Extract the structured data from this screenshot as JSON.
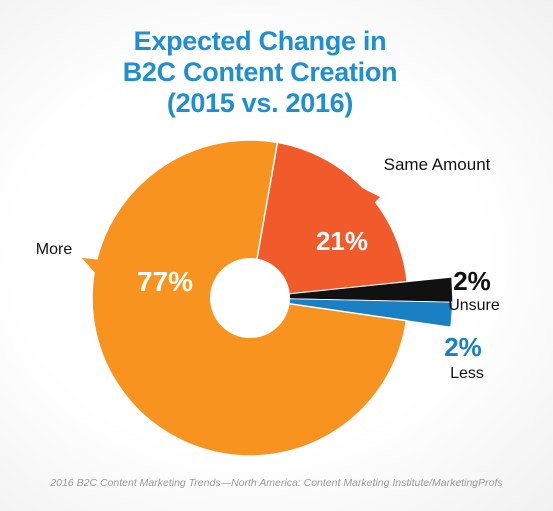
{
  "chart_data": {
    "type": "pie",
    "title_lines": [
      "Expected Change in",
      "B2C Content Creation",
      "(2015 vs. 2016)"
    ],
    "slices": [
      {
        "label": "Same Amount",
        "value": 21,
        "value_label": "21%",
        "color": "#f15a2b"
      },
      {
        "label": "Unsure",
        "value": 2,
        "value_label": "2%",
        "color": "#111111"
      },
      {
        "label": "Less",
        "value": 2,
        "value_label": "2%",
        "color": "#1b7fc4"
      },
      {
        "label": "More",
        "value": 77,
        "value_label": "77%",
        "color": "#f7931e"
      }
    ],
    "donut_hole": true,
    "legend": "none",
    "source": "2016 B2C Content Marketing Trends—North America: Content Marketing Institute/MarketingProfs"
  }
}
